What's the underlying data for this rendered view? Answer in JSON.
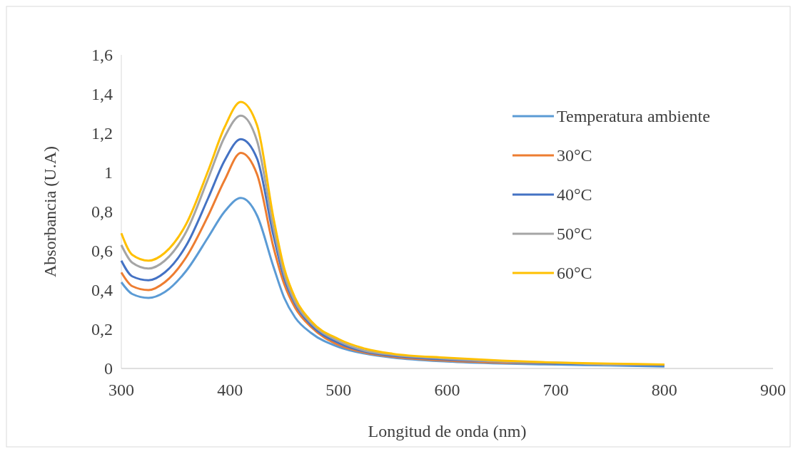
{
  "chart_data": {
    "type": "line",
    "xlabel": "Longitud de onda (nm)",
    "ylabel": "Absorbancia (U.A)",
    "x": [
      300,
      310,
      325,
      340,
      360,
      380,
      395,
      410,
      425,
      440,
      450,
      460,
      475,
      500,
      525,
      550,
      600,
      650,
      700,
      750,
      800
    ],
    "series": [
      {
        "name": "Temperatura ambiente",
        "color": "#5b9bd5",
        "values": [
          0.44,
          0.38,
          0.36,
          0.39,
          0.5,
          0.67,
          0.8,
          0.87,
          0.78,
          0.52,
          0.36,
          0.26,
          0.18,
          0.11,
          0.075,
          0.055,
          0.035,
          0.025,
          0.02,
          0.015,
          0.01
        ]
      },
      {
        "name": "30°C",
        "color": "#ed7d31",
        "values": [
          0.49,
          0.42,
          0.4,
          0.44,
          0.57,
          0.78,
          0.96,
          1.1,
          0.99,
          0.62,
          0.43,
          0.31,
          0.21,
          0.12,
          0.08,
          0.06,
          0.04,
          0.03,
          0.025,
          null,
          null
        ]
      },
      {
        "name": "40°C",
        "color": "#4472c4",
        "values": [
          0.55,
          0.47,
          0.45,
          0.49,
          0.63,
          0.87,
          1.06,
          1.17,
          1.07,
          0.68,
          0.46,
          0.33,
          0.22,
          0.13,
          0.085,
          0.065,
          0.045,
          0.035,
          0.025,
          0.02,
          0.015
        ]
      },
      {
        "name": "50°C",
        "color": "#a5a5a5",
        "values": [
          0.63,
          0.54,
          0.51,
          0.55,
          0.7,
          0.97,
          1.18,
          1.29,
          1.16,
          0.72,
          0.48,
          0.34,
          0.23,
          0.14,
          0.09,
          0.07,
          0.05,
          0.035,
          0.03,
          0.02,
          0.02
        ]
      },
      {
        "name": "60°C",
        "color": "#ffc000",
        "values": [
          0.69,
          0.58,
          0.55,
          0.59,
          0.74,
          1.01,
          1.23,
          1.36,
          1.24,
          0.77,
          0.51,
          0.36,
          0.24,
          0.15,
          0.1,
          0.075,
          0.055,
          0.04,
          0.03,
          0.025,
          0.02
        ]
      }
    ],
    "xlim": [
      300,
      900
    ],
    "xticks": [
      300,
      400,
      500,
      600,
      700,
      800,
      900
    ],
    "ylim": [
      0,
      1.6
    ],
    "yticks": [
      0,
      {
        "value": 0.2,
        "label": "0,2"
      },
      {
        "value": 0.4,
        "label": "0,4"
      },
      {
        "value": 0.6,
        "label": "0,6"
      },
      {
        "value": 0.8,
        "label": "0,8"
      },
      1,
      {
        "value": 1.2,
        "label": "1,2"
      },
      {
        "value": 1.4,
        "label": "1,4"
      },
      {
        "value": 1.6,
        "label": "1,6"
      }
    ],
    "grid": false,
    "legend": "right",
    "marker": "none",
    "line_style": "solid"
  }
}
